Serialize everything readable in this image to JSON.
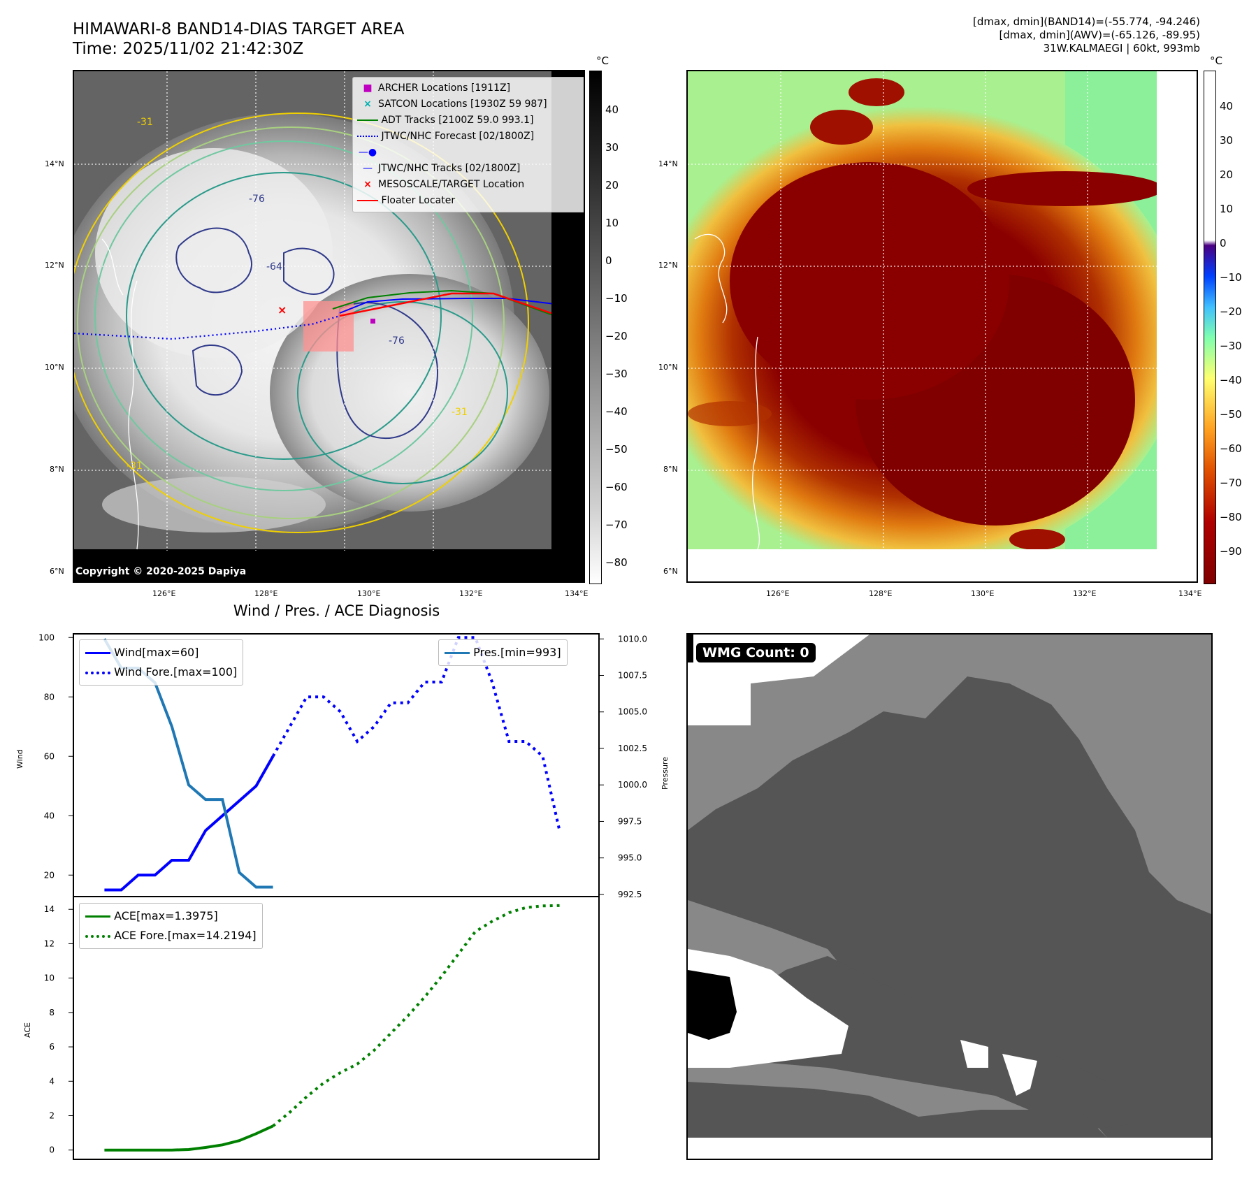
{
  "header": {
    "title_line1": "HIMAWARI-8 BAND14-DIAS TARGET AREA",
    "title_line2": "Time: 2025/11/02 21:42:30Z",
    "info_line1": "[dmax, dmin](BAND14)=(-55.774, -94.246)",
    "info_line2": "[dmax, dmin](AWV)=(-65.126, -89.95)",
    "info_line3": "31W.KALMAEGI | 60kt, 993mb"
  },
  "map": {
    "lat_labels": [
      "14°N",
      "12°N",
      "10°N",
      "8°N",
      "6°N"
    ],
    "lon_labels": [
      "126°E",
      "128°E",
      "130°E",
      "132°E",
      "134°E"
    ],
    "copyright": "Copyright © 2020-2025 Dapiya",
    "contour_labels": [
      "-76",
      "-64",
      "-76",
      "-31",
      "-31",
      "-31"
    ]
  },
  "legend": {
    "items": [
      {
        "label": "ARCHER Locations [1911Z]",
        "color": "#c000c0",
        "marker": "square"
      },
      {
        "label": "SATCON Locations [1930Z 59 987]",
        "color": "#00b0b0",
        "marker": "x"
      },
      {
        "label": "ADT Tracks [2100Z 59.0 993.1]",
        "color": "#008000",
        "marker": "line"
      },
      {
        "label": "JTWC/NHC Forecast [02/1800Z]",
        "color": "#0000ff",
        "marker": "dotted"
      },
      {
        "label": "JTWC/NHC Tracks [02/1800Z]",
        "color": "#0000ff",
        "marker": "line-dot"
      },
      {
        "label": "MESOSCALE/TARGET Location",
        "color": "#ff0000",
        "marker": "x"
      },
      {
        "label": "Floater Locater",
        "color": "#ff0000",
        "marker": "line"
      }
    ]
  },
  "colorbar_gray": {
    "unit": "°C",
    "ticks": [
      "40",
      "30",
      "20",
      "10",
      "0",
      "−10",
      "−20",
      "−30",
      "−40",
      "−50",
      "−60",
      "−70",
      "−80"
    ]
  },
  "colorbar_color": {
    "unit": "°C",
    "ticks": [
      "40",
      "30",
      "20",
      "10",
      "0",
      "−10",
      "−20",
      "−30",
      "−40",
      "−50",
      "−60",
      "−70",
      "−80",
      "−90"
    ]
  },
  "wmg": {
    "label": "WMG Count: 0"
  },
  "diagnosis": {
    "title": "Wind / Pres. / ACE Diagnosis",
    "wind_ylabel": "Wind",
    "pres_ylabel": "Pressure",
    "ace_ylabel": "ACE",
    "legend_wind": "Wind[max=60]",
    "legend_wind_fore": "Wind Fore.[max=100]",
    "legend_pres": "Pres.[min=993]",
    "legend_ace": "ACE[max=1.3975]",
    "legend_ace_fore": "ACE Fore.[max=14.2194]"
  },
  "chart_data": [
    {
      "type": "line",
      "title": "Wind / Pres. / ACE Diagnosis",
      "ylabel": "Wind",
      "ylim": [
        13,
        101
      ],
      "yticks": [
        20,
        40,
        60,
        80,
        100
      ],
      "series": [
        {
          "name": "Wind[max=60]",
          "color": "#0000ff",
          "style": "solid",
          "x": [
            0,
            1,
            2,
            3,
            4,
            5,
            6,
            7,
            8,
            9,
            10
          ],
          "values": [
            15,
            15,
            20,
            20,
            25,
            25,
            35,
            40,
            45,
            50,
            60
          ]
        },
        {
          "name": "Wind Fore.[max=100]",
          "color": "#0000ff",
          "style": "dotted",
          "x": [
            10,
            11,
            12,
            13,
            14,
            15,
            16,
            17,
            18,
            19,
            20,
            21,
            22,
            23,
            24,
            25,
            26,
            27
          ],
          "values": [
            60,
            70,
            80,
            80,
            75,
            65,
            70,
            78,
            78,
            85,
            85,
            100,
            100,
            85,
            65,
            65,
            60,
            35
          ]
        }
      ],
      "secondary_axis": {
        "ylabel": "Pressure",
        "ylim": [
          992.4,
          1010.3
        ],
        "yticks": [
          "1010.0",
          "1007.5",
          "1005.0",
          "1002.5",
          "1000.0",
          "997.5",
          "995.0",
          "992.5"
        ],
        "series": [
          {
            "name": "Pres.[min=993]",
            "color": "#1f77b4",
            "style": "solid",
            "x": [
              0,
              1,
              2,
              3,
              4,
              5,
              6,
              7,
              8,
              9,
              10
            ],
            "values": [
              1010,
              1008,
              1008,
              1007,
              1004,
              1000,
              999,
              999,
              994,
              993,
              993
            ]
          }
        ]
      }
    },
    {
      "type": "line",
      "ylabel": "ACE",
      "ylim": [
        -0.5,
        14.7
      ],
      "yticks": [
        0,
        2,
        4,
        6,
        8,
        10,
        12,
        14
      ],
      "series": [
        {
          "name": "ACE[max=1.3975]",
          "color": "#008000",
          "style": "solid",
          "x": [
            0,
            1,
            2,
            3,
            4,
            5,
            6,
            7,
            8,
            9,
            10
          ],
          "values": [
            0,
            0,
            0,
            0,
            0,
            0.03,
            0.15,
            0.3,
            0.55,
            0.95,
            1.3975
          ]
        },
        {
          "name": "ACE Fore.[max=14.2194]",
          "color": "#008000",
          "style": "dotted",
          "x": [
            10,
            11,
            12,
            13,
            14,
            15,
            16,
            17,
            18,
            19,
            20,
            21,
            22,
            23,
            24,
            25,
            26,
            27
          ],
          "values": [
            1.3975,
            2.2,
            3.1,
            3.9,
            4.5,
            5.0,
            5.8,
            6.8,
            7.8,
            8.9,
            10.1,
            11.4,
            12.7,
            13.3,
            13.8,
            14.1,
            14.2,
            14.2194
          ]
        }
      ]
    }
  ]
}
